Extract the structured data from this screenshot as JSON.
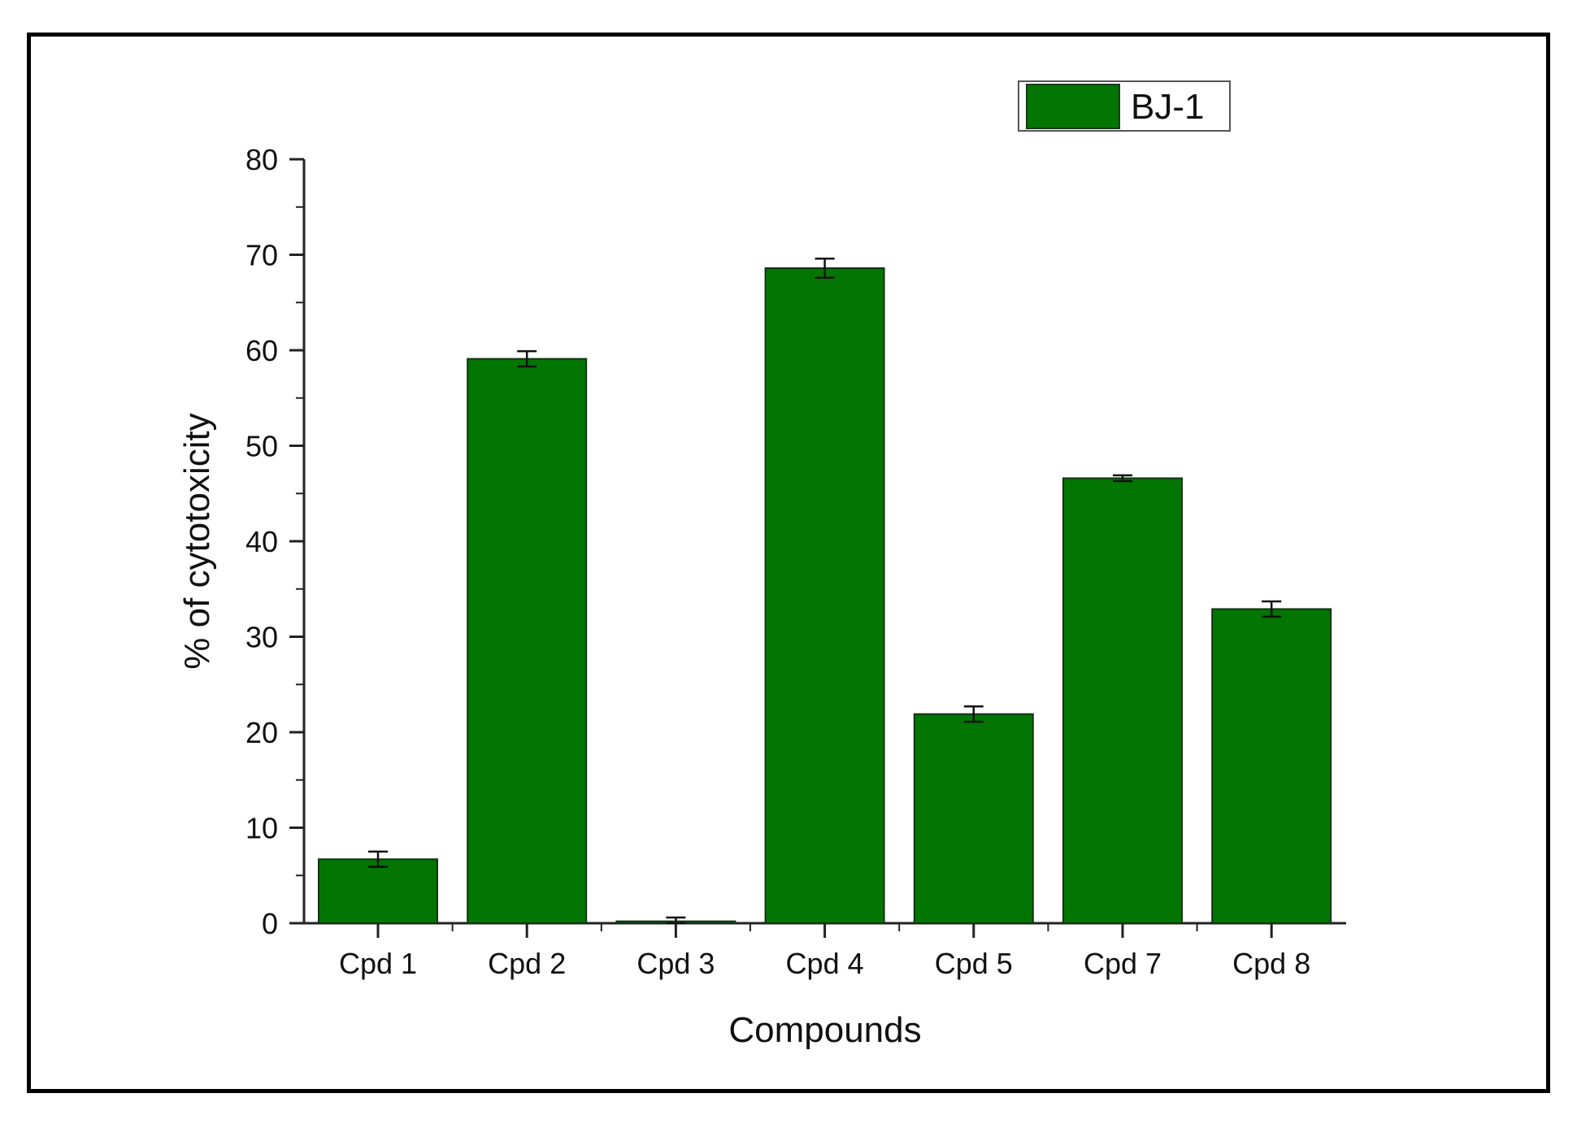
{
  "chart_data": {
    "type": "bar",
    "categories": [
      "Cpd 1",
      "Cpd 2",
      "Cpd 3",
      "Cpd 4",
      "Cpd 5",
      "Cpd 7",
      "Cpd 8"
    ],
    "series": [
      {
        "name": "BJ-1",
        "values": [
          6.7,
          59.1,
          0.2,
          68.6,
          21.9,
          46.6,
          32.9
        ],
        "errors": [
          0.8,
          0.8,
          0.4,
          1.0,
          0.8,
          0.3,
          0.8
        ],
        "color": "#037503"
      }
    ],
    "title": "",
    "xlabel": "Compounds",
    "ylabel": "% of cytotoxicity",
    "ylim": [
      0,
      80
    ],
    "yticks": [
      0,
      10,
      20,
      30,
      40,
      50,
      60,
      70,
      80
    ],
    "grid": false,
    "legend_position": "top-right"
  }
}
